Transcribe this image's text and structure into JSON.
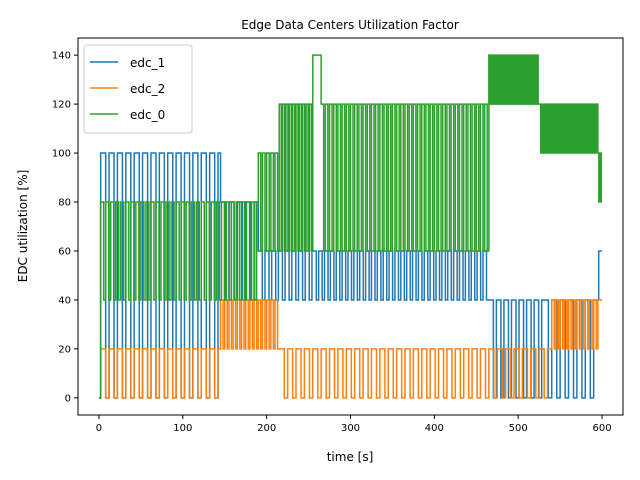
{
  "chart_data": {
    "type": "line",
    "title": "Edge Data Centers Utilization Factor",
    "xlabel": "time [s]",
    "ylabel": "EDC utilization [%]",
    "xlim": [
      -25,
      625
    ],
    "ylim": [
      -7,
      147
    ],
    "xticks": [
      0,
      100,
      200,
      300,
      400,
      500,
      600
    ],
    "yticks": [
      0,
      20,
      40,
      60,
      80,
      100,
      120,
      140
    ],
    "grid": false,
    "legend_position": "top-left",
    "series": [
      {
        "name": "edc_1",
        "color": "#1f77b4",
        "segments": [
          {
            "start": 0,
            "end": 2,
            "base": 0,
            "high": 0,
            "period": 10
          },
          {
            "start": 2,
            "end": 145,
            "base": 100,
            "high": 0,
            "period": 10
          },
          {
            "start": 145,
            "end": 190,
            "base": 80,
            "high": 40,
            "period": 10
          },
          {
            "start": 190,
            "end": 255,
            "base": 60,
            "high": 40,
            "period": 8
          },
          {
            "start": 255,
            "end": 465,
            "base": 60,
            "high": 40,
            "period": 7
          },
          {
            "start": 465,
            "end": 530,
            "base": 40,
            "high": 0,
            "period": 9
          },
          {
            "start": 530,
            "end": 596,
            "base": 40,
            "high": 0,
            "period": 10
          },
          {
            "start": 596,
            "end": 600,
            "base": 60,
            "high": 60,
            "period": 10
          }
        ]
      },
      {
        "name": "edc_2",
        "color": "#ff7f0e",
        "segments": [
          {
            "start": 0,
            "end": 2,
            "base": 0,
            "high": 0,
            "period": 10
          },
          {
            "start": 2,
            "end": 145,
            "base": 20,
            "high": 0,
            "period": 10
          },
          {
            "start": 145,
            "end": 215,
            "base": 40,
            "high": 20,
            "period": 5
          },
          {
            "start": 215,
            "end": 540,
            "base": 20,
            "high": 0,
            "period": 10
          },
          {
            "start": 540,
            "end": 596,
            "base": 40,
            "high": 20,
            "period": 5
          },
          {
            "start": 596,
            "end": 600,
            "base": 40,
            "high": 40,
            "period": 10
          }
        ]
      },
      {
        "name": "edc_0",
        "color": "#2ca02c",
        "segments": [
          {
            "start": 0,
            "end": 2,
            "base": 0,
            "high": 0,
            "period": 10
          },
          {
            "start": 2,
            "end": 190,
            "base": 80,
            "high": 40,
            "period": 6
          },
          {
            "start": 190,
            "end": 215,
            "base": 100,
            "high": 60,
            "period": 5
          },
          {
            "start": 215,
            "end": 255,
            "base": 120,
            "high": 60,
            "period": 4
          },
          {
            "start": 255,
            "end": 265,
            "base": 140,
            "high": 140,
            "period": 10
          },
          {
            "start": 265,
            "end": 465,
            "base": 120,
            "high": 60,
            "period": 5
          },
          {
            "start": 465,
            "end": 525,
            "base": 140,
            "high": 120,
            "period": 3
          },
          {
            "start": 525,
            "end": 595,
            "base": 120,
            "high": 100,
            "period": 3
          },
          {
            "start": 595,
            "end": 600,
            "base": 100,
            "high": 80,
            "period": 2
          }
        ]
      }
    ]
  }
}
